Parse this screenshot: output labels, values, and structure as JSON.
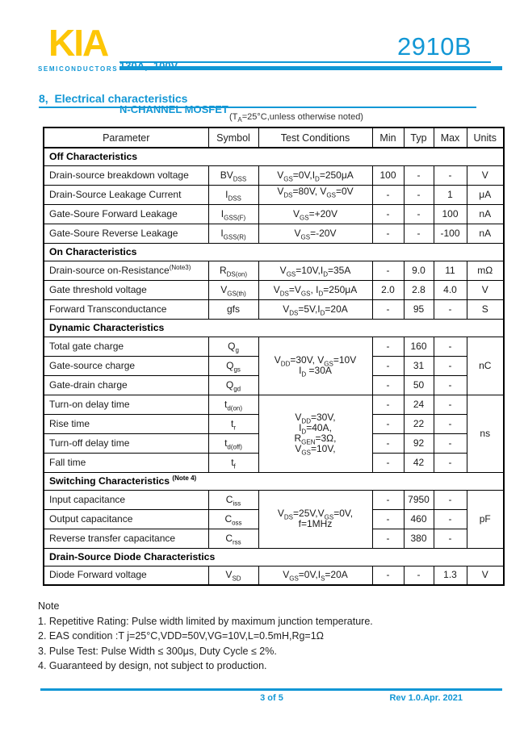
{
  "header": {
    "logo": "KIA",
    "logo_sub": "SEMICONDUCTORS",
    "rating": "130A,  100V",
    "device_type": "N-CHANNEL MOSFET",
    "part_number": "2910B"
  },
  "section": {
    "heading": "8,  Electrical characteristics"
  },
  "table": {
    "condition_note": "(T~A~=25°C,unless otherwise noted)",
    "columns": [
      "Parameter",
      "Symbol",
      "Test Conditions",
      "Min",
      "Typ",
      "Max",
      "Units"
    ],
    "rows": [
      {
        "type": "section",
        "label": "Off Characteristics"
      },
      {
        "type": "row",
        "p": "Drain-source breakdown voltage",
        "s": "BV~DSS~",
        "c": "V~GS~=0V,I~D~=250μA",
        "min": "100",
        "typ": "-",
        "max": "-",
        "u": "V"
      },
      {
        "type": "row",
        "p": "Drain-Source Leakage Current",
        "s": "I~DSS~",
        "c": "V~DS~=80V, V~GS~=0V",
        "ctop": true,
        "min": "-",
        "typ": "-",
        "max": "1",
        "u": "μA"
      },
      {
        "type": "row",
        "p": "Gate-Soure Forward Leakage",
        "s": "I~GSS(F)~",
        "c": "V~GS~=+20V",
        "min": "-",
        "typ": "-",
        "max": "100",
        "u": "nA"
      },
      {
        "type": "row",
        "p": "Gate-Soure Reverse Leakage",
        "s": "I~GSS(R)~",
        "c": "V~GS~=-20V",
        "min": "-",
        "typ": "-",
        "max": "-100",
        "u": "nA"
      },
      {
        "type": "section",
        "label": "On Characteristics"
      },
      {
        "type": "row",
        "p": "Drain-source on-Resistance^(Note3)^",
        "s": "R~DS(on)~",
        "c": "V~GS~=10V,I~D~=35A",
        "min": "-",
        "typ": "9.0",
        "max": "11",
        "u": "mΩ"
      },
      {
        "type": "row",
        "p": "Gate threshold voltage",
        "s": "V~GS(th)~",
        "c": "V~DS~=V~GS~, I~D~=250μA",
        "min": "2.0",
        "typ": "2.8",
        "max": "4.0",
        "u": "V"
      },
      {
        "type": "row",
        "p": "Forward Transconductance",
        "s": "gfs",
        "c": "V~DS~=5V,I~D~=20A",
        "min": "-",
        "typ": "95",
        "max": "-",
        "u": "S"
      },
      {
        "type": "section",
        "label": "Dynamic Characteristics"
      },
      {
        "type": "row",
        "p": "Total gate charge",
        "s": "Q~g~",
        "c": "V~DD~=30V, V~GS~=10V\nI~D~ =30A",
        "cspan": 3,
        "min": "-",
        "typ": "160",
        "max": "-",
        "u": "nC",
        "uspan": 3
      },
      {
        "type": "row",
        "p": "Gate-source charge",
        "s": "Q~gs~",
        "min": "-",
        "typ": "31",
        "max": "-"
      },
      {
        "type": "row",
        "p": "Gate-drain charge",
        "s": "Q~gd~",
        "min": "-",
        "typ": "50",
        "max": "-"
      },
      {
        "type": "row",
        "p": "Turn-on delay time",
        "s": "t~d(on)~",
        "c": "V~DD~=30V,\nI~D~=40A,\nR~GEN~=3Ω,\nV~GS~=10V,",
        "cspan": 4,
        "min": "-",
        "typ": "24",
        "max": "-",
        "u": "ns",
        "uspan": 4
      },
      {
        "type": "row",
        "p": "Rise time",
        "s": "t~r~",
        "min": "-",
        "typ": "22",
        "max": "-"
      },
      {
        "type": "row",
        "p": "Turn-off delay time",
        "s": "t~d(off)~",
        "min": "-",
        "typ": "92",
        "max": "-"
      },
      {
        "type": "row",
        "p": "Fall time",
        "s": "t~f~",
        "min": "-",
        "typ": "42",
        "max": "-"
      },
      {
        "type": "section",
        "label": "Switching Characteristics ^(Note 4)^"
      },
      {
        "type": "row",
        "p": "Input capacitance",
        "s": "C~iss~",
        "c": "V~DS~=25V,V~GS~=0V,\nf=1MHz",
        "cspan": 3,
        "min": "-",
        "typ": "7950",
        "max": "-",
        "u": "pF",
        "uspan": 3
      },
      {
        "type": "row",
        "p": "Output capacitance",
        "s": "C~oss~",
        "min": "-",
        "typ": "460",
        "max": "-"
      },
      {
        "type": "row",
        "p": "Reverse transfer capacitance",
        "s": "C~rss~",
        "min": "-",
        "typ": "380",
        "max": "-"
      },
      {
        "type": "section",
        "label": "Drain-Source Diode Characteristics"
      },
      {
        "type": "row",
        "p": "Diode Forward voltage",
        "s": "V~SD~",
        "c": "V~GS~=0V,I~S~=20A",
        "min": "-",
        "typ": "-",
        "max": "1.3",
        "u": "V"
      }
    ]
  },
  "notes": {
    "title": "Note",
    "items": [
      "1. Repetitive Rating: Pulse width limited by maximum junction temperature.",
      "2. EAS condition :T j=25°C,VDD=50V,VG=10V,L=0.5mH,Rg=1Ω",
      "3. Pulse Test: Pulse Width ≤ 300μs, Duty Cycle ≤ 2%.",
      "4. Guaranteed by design, not subject to production."
    ]
  },
  "footer": {
    "page_indicator": "3 of 5",
    "revision": "Rev 1.0.Apr. 2021"
  },
  "colors": {
    "accent_blue": "#1297d5",
    "logo_yellow": "#fdc606"
  }
}
